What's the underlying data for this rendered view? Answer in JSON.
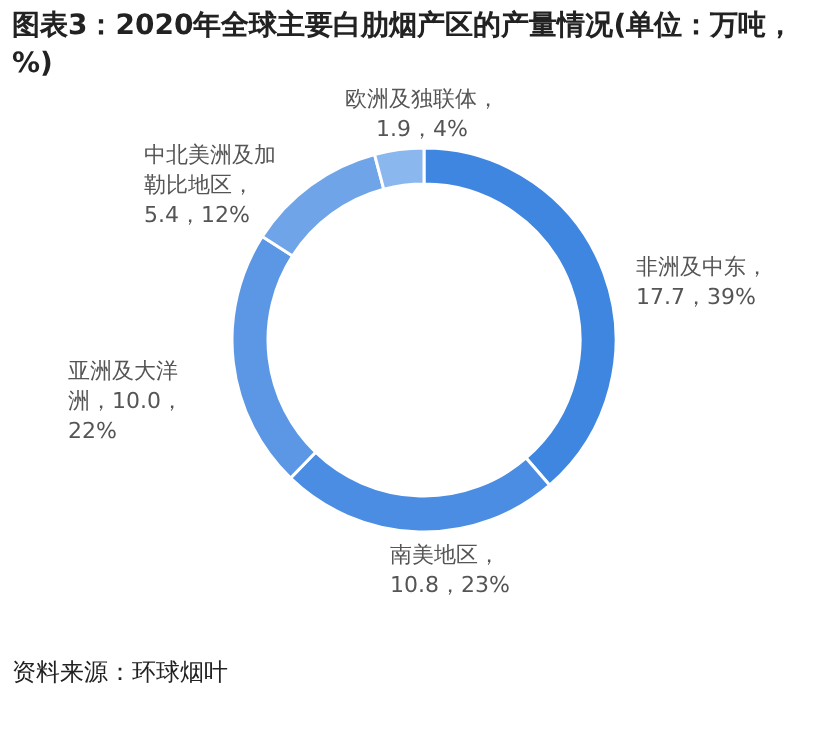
{
  "chart_data": {
    "type": "donut",
    "title": "图表3：2020年全球主要白肋烟产区的产量情况(单位：万吨，%)",
    "categories": [
      "非洲及中东",
      "南美地区",
      "亚洲及大洋洲",
      "中北美洲及加勒比地区",
      "欧洲及独联体"
    ],
    "values": [
      17.7,
      10.8,
      10.0,
      5.4,
      1.9
    ],
    "value_labels": [
      "，17.7，39%",
      "，10.8，23%",
      "，10.0，22%",
      "，5.4，12%",
      "，1.9，4%"
    ],
    "colors": [
      "#3f86e0",
      "#4a8de2",
      "#5b97e4",
      "#6fa4e8",
      "#8ab7ee"
    ],
    "annotations": [
      "资料来源：环球烟叶"
    ]
  }
}
